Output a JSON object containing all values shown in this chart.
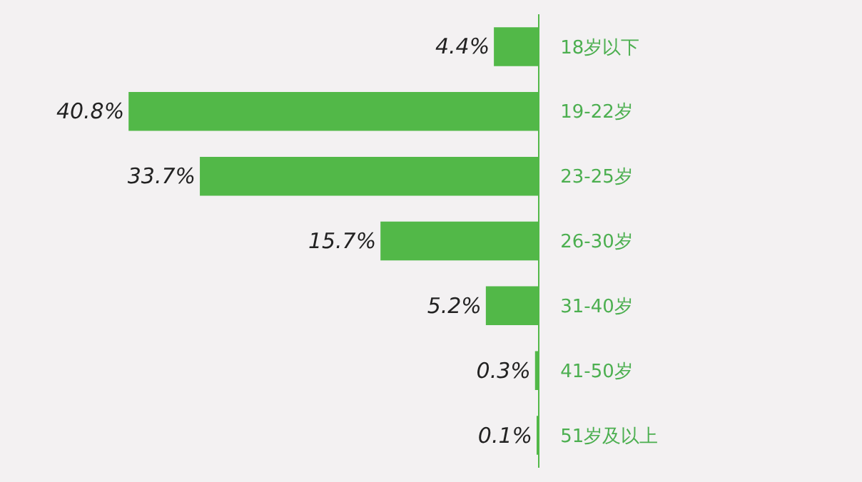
{
  "chart_data": {
    "type": "bar",
    "orientation": "horizontal",
    "categories": [
      "18岁以下",
      "19-22岁",
      "23-25岁",
      "26-30岁",
      "31-40岁",
      "41-50岁",
      "51岁及以上"
    ],
    "values": [
      4.4,
      40.8,
      33.7,
      15.7,
      5.2,
      0.3,
      0.1
    ],
    "value_labels": [
      "4.4%",
      "40.8%",
      "33.7%",
      "15.7%",
      "5.2%",
      "0.3%",
      "0.1%"
    ],
    "color": "#52b848",
    "grid": false,
    "legend": false
  }
}
